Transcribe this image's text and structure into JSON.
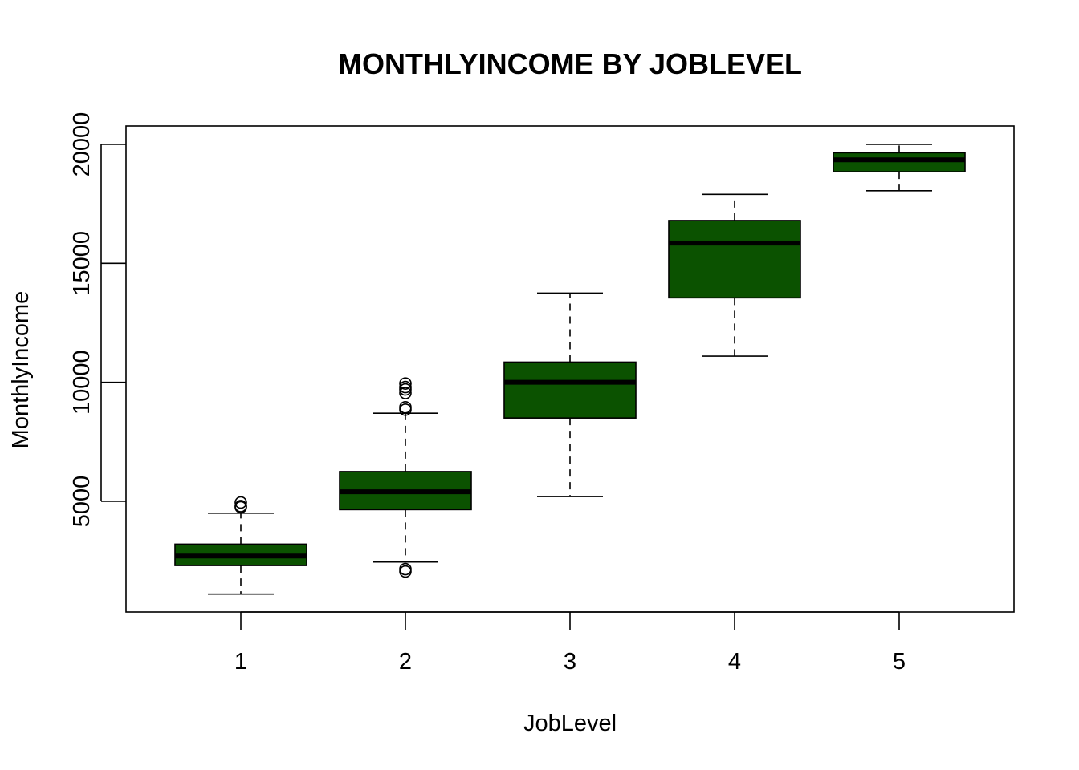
{
  "chart_data": {
    "type": "boxplot",
    "title": "MONTHLYINCOME BY JOBLEVEL",
    "xlabel": "JobLevel",
    "ylabel": "MonthlyIncome",
    "categories": [
      "1",
      "2",
      "3",
      "4",
      "5"
    ],
    "ylim": [
      600,
      21000
    ],
    "yticks": [
      5000,
      10000,
      15000,
      20000
    ],
    "box_color": "#0b5200",
    "grid": false,
    "legend": false,
    "boxes": [
      {
        "category": "1",
        "whisker_low": 1100,
        "q1": 2300,
        "median": 2700,
        "q3": 3200,
        "whisker_high": 4500,
        "outliers": [
          4750,
          4800,
          4950
        ]
      },
      {
        "category": "2",
        "whisker_low": 2450,
        "q1": 4650,
        "median": 5400,
        "q3": 6250,
        "whisker_high": 8700,
        "outliers": [
          2050,
          2150,
          8850,
          8950,
          9550,
          9700,
          9800,
          9950
        ]
      },
      {
        "category": "3",
        "whisker_low": 5200,
        "q1": 8500,
        "median": 10000,
        "q3": 10850,
        "whisker_high": 13750,
        "outliers": []
      },
      {
        "category": "4",
        "whisker_low": 11100,
        "q1": 13550,
        "median": 15850,
        "q3": 16800,
        "whisker_high": 17900,
        "outliers": []
      },
      {
        "category": "5",
        "whisker_low": 18050,
        "q1": 18850,
        "median": 19350,
        "q3": 19650,
        "whisker_high": 20000,
        "outliers": []
      }
    ]
  }
}
